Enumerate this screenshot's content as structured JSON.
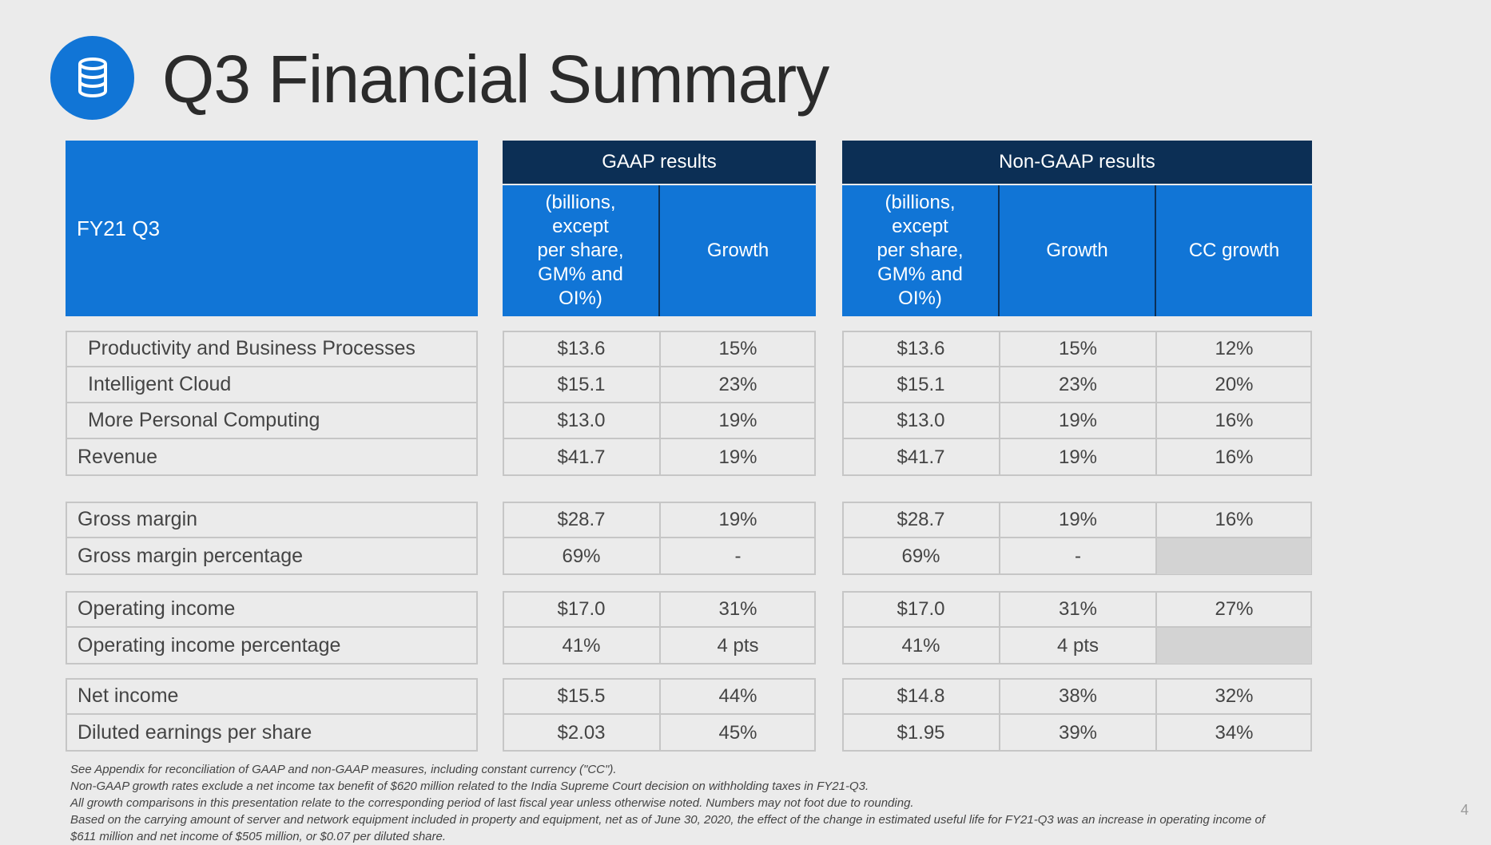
{
  "title": "Q3 Financial Summary",
  "header": {
    "fy_label": "FY21 Q3",
    "gaap_label": "GAAP results",
    "nongaap_label": "Non-GAAP results",
    "units_lines": [
      "(billions,",
      "except",
      "per share,",
      "GM% and",
      "OI%)"
    ],
    "growth_label": "Growth",
    "cc_growth_label": "CC growth"
  },
  "groups": [
    {
      "rows": [
        {
          "label": "Productivity and Business Processes",
          "indent": true,
          "gaap": "$13.6",
          "gaap_growth": "15%",
          "ng": "$13.6",
          "ng_growth": "15%",
          "cc": "12%"
        },
        {
          "label": "Intelligent Cloud",
          "indent": true,
          "gaap": "$15.1",
          "gaap_growth": "23%",
          "ng": "$15.1",
          "ng_growth": "23%",
          "cc": "20%"
        },
        {
          "label": "More Personal Computing",
          "indent": true,
          "gaap": "$13.0",
          "gaap_growth": "19%",
          "ng": "$13.0",
          "ng_growth": "19%",
          "cc": "16%"
        },
        {
          "label": "Revenue",
          "indent": false,
          "gaap": "$41.7",
          "gaap_growth": "19%",
          "ng": "$41.7",
          "ng_growth": "19%",
          "cc": "16%"
        }
      ]
    },
    {
      "rows": [
        {
          "label": "Gross margin",
          "indent": false,
          "gaap": "$28.7",
          "gaap_growth": "19%",
          "ng": "$28.7",
          "ng_growth": "19%",
          "cc": "16%"
        },
        {
          "label": "Gross margin percentage",
          "indent": false,
          "gaap": "69%",
          "gaap_growth": "-",
          "ng": "69%",
          "ng_growth": "-",
          "cc": null
        }
      ]
    },
    {
      "rows": [
        {
          "label": "Operating income",
          "indent": false,
          "gaap": "$17.0",
          "gaap_growth": "31%",
          "ng": "$17.0",
          "ng_growth": "31%",
          "cc": "27%"
        },
        {
          "label": "Operating income percentage",
          "indent": false,
          "gaap": "41%",
          "gaap_growth": "4 pts",
          "ng": "41%",
          "ng_growth": "4 pts",
          "cc": null
        }
      ]
    },
    {
      "rows": [
        {
          "label": "Net income",
          "indent": false,
          "gaap": "$15.5",
          "gaap_growth": "44%",
          "ng": "$14.8",
          "ng_growth": "38%",
          "cc": "32%"
        },
        {
          "label": "Diluted earnings per share",
          "indent": false,
          "gaap": "$2.03",
          "gaap_growth": "45%",
          "ng": "$1.95",
          "ng_growth": "39%",
          "cc": "34%"
        }
      ]
    }
  ],
  "footnotes": [
    "See Appendix for reconciliation of GAAP and non-GAAP measures, including constant currency (\"CC\").",
    "Non-GAAP growth rates exclude a net income tax benefit of $620 million related to the India Supreme Court decision on withholding taxes in FY21-Q3.",
    "All growth comparisons in this presentation relate to the corresponding period of last fiscal year unless otherwise noted. Numbers may not foot due to rounding.",
    "Based on the carrying amount of server and network equipment included in property and equipment, net as of June 30, 2020, the effect of the change in estimated useful life for FY21-Q3 was an increase in operating income of",
    "$611 million and net income of $505 million, or $0.07 per diluted share."
  ],
  "page_number": "4",
  "colors": {
    "accent_blue": "#1175d6",
    "header_navy": "#0c2f55",
    "background": "#ebebeb"
  },
  "icon": "database-icon"
}
